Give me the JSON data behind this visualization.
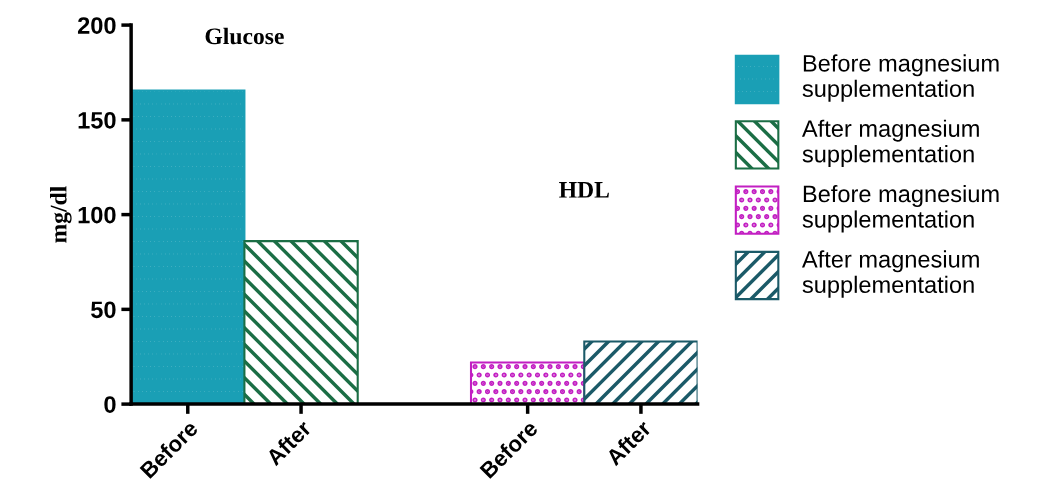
{
  "chart_data": {
    "type": "bar",
    "ylabel": "mg/dl",
    "categories": [
      "Before",
      "After",
      null,
      "Before",
      "After"
    ],
    "series": [
      {
        "name": "Before magnesium supplementation",
        "color": "#1a9fb5",
        "values": [
          165.5,
          null,
          null,
          null,
          null
        ]
      },
      {
        "name": "After magnesium supplementation",
        "color": "#1b6e45",
        "values": [
          null,
          86,
          null,
          null,
          null
        ]
      },
      {
        "name": "Before magnesium supplementation",
        "color": "#c21fc2",
        "values": [
          null,
          null,
          null,
          22,
          null
        ]
      },
      {
        "name": "After magnesium supplementation",
        "color": "#1b5a68",
        "values": [
          null,
          null,
          null,
          null,
          33
        ]
      }
    ],
    "annotations": [
      "Glucose",
      "HDL"
    ],
    "ylim": [
      0,
      200
    ],
    "yticks": [
      0,
      50,
      100,
      150,
      200
    ],
    "grid": false,
    "legend": "right"
  }
}
